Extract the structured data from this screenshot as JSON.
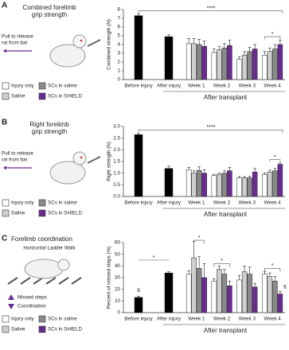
{
  "chart_data": [
    {
      "type": "bar",
      "panel_label": "A",
      "title_lines": [
        "Combined forelimb",
        "grip strength"
      ],
      "note_lines": [
        "Pull to release",
        "rat from bar"
      ],
      "y_label": "Combined strength (N)",
      "group_label": "After transplant",
      "categories": [
        "Before injury",
        "After injury",
        "Week 1",
        "Week 2",
        "Week 3",
        "Week 4"
      ],
      "baseline": {
        "color": "#000000",
        "values": [
          7.3,
          4.9,
          null,
          null,
          null,
          null
        ],
        "errors": [
          0.2,
          0.2,
          null,
          null,
          null,
          null
        ]
      },
      "series": [
        {
          "name": "Injury only",
          "color": "#ffffff",
          "values": [
            null,
            null,
            4.1,
            3.1,
            2.3,
            2.8
          ],
          "errors": [
            null,
            null,
            0.6,
            0.4,
            0.3,
            0.4
          ]
        },
        {
          "name": "Saline",
          "color": "#cfcfcf",
          "values": [
            null,
            null,
            4.1,
            3.4,
            2.8,
            3.2
          ],
          "errors": [
            null,
            null,
            0.6,
            0.4,
            0.4,
            0.4
          ]
        },
        {
          "name": "SCs in saline",
          "color": "#8a8a8a",
          "values": [
            null,
            null,
            4.0,
            3.6,
            3.2,
            3.5
          ],
          "errors": [
            null,
            null,
            0.6,
            0.5,
            0.5,
            0.5
          ]
        },
        {
          "name": "SCs in SHIELD",
          "color": "#6a2c91",
          "values": [
            null,
            null,
            3.8,
            3.9,
            3.5,
            4.0
          ],
          "errors": [
            null,
            null,
            0.6,
            0.6,
            0.5,
            0.5
          ]
        }
      ],
      "ylim": [
        0,
        8
      ],
      "yticks": [
        0,
        1,
        2,
        3,
        4,
        5,
        6,
        7,
        8
      ],
      "annotations": [
        "****",
        "*"
      ]
    },
    {
      "type": "bar",
      "panel_label": "B",
      "title_lines": [
        "Right forelimb",
        "grip strength"
      ],
      "note_lines": [
        "Pull to release",
        "rat from bar"
      ],
      "y_label": "Right strength (N)",
      "group_label": "After transplant",
      "categories": [
        "Before injury",
        "After injury",
        "Week 1",
        "Week 2",
        "Week 3",
        "Week 4"
      ],
      "baseline": {
        "color": "#000000",
        "values": [
          2.65,
          1.2,
          null,
          null,
          null,
          null
        ],
        "errors": [
          0.05,
          0.1,
          null,
          null,
          null,
          null
        ]
      },
      "series": [
        {
          "name": "Injury only",
          "color": "#ffffff",
          "values": [
            null,
            null,
            1.15,
            0.9,
            0.8,
            0.95
          ],
          "errors": [
            null,
            null,
            0.1,
            0.05,
            0.05,
            0.06
          ]
        },
        {
          "name": "Saline",
          "color": "#cfcfcf",
          "values": [
            null,
            null,
            1.0,
            0.95,
            0.8,
            1.05
          ],
          "errors": [
            null,
            null,
            0.1,
            0.06,
            0.05,
            0.08
          ]
        },
        {
          "name": "SCs in saline",
          "color": "#8a8a8a",
          "values": [
            null,
            null,
            1.12,
            1.0,
            0.8,
            1.1
          ],
          "errors": [
            null,
            null,
            0.15,
            0.1,
            0.06,
            0.1
          ]
        },
        {
          "name": "SCs in SHIELD",
          "color": "#6a2c91",
          "values": [
            null,
            null,
            1.0,
            1.1,
            1.05,
            1.38
          ],
          "errors": [
            null,
            null,
            0.15,
            0.15,
            0.15,
            0.06
          ]
        }
      ],
      "ylim": [
        0,
        3
      ],
      "yticks": [
        {
          "value": 0,
          "label": "0.0"
        },
        {
          "value": 0.5,
          "label": "0.5"
        },
        {
          "value": 1,
          "label": "1.0"
        },
        {
          "value": 1.5,
          "label": "1.5"
        },
        {
          "value": 2,
          "label": "2.0"
        },
        {
          "value": 2.5,
          "label": "2.5"
        },
        {
          "value": 3,
          "label": "3.0"
        }
      ],
      "annotations": [
        "****",
        "*"
      ]
    },
    {
      "type": "bar",
      "panel_label": "C",
      "title_lines": [
        "Forelimb coordination",
        "Horizontal Ladder Walk"
      ],
      "note_lines": [
        "Missed steps",
        "Coordination"
      ],
      "y_label": "Percent of missed steps (%)",
      "group_label": "After transplant",
      "categories": [
        "Before injury",
        "After injury",
        "Week 1",
        "Week 2",
        "Week 3",
        "Week 4"
      ],
      "baseline": {
        "color": "#000000",
        "values": [
          13,
          34,
          null,
          null,
          null,
          null
        ],
        "errors": [
          1,
          1,
          null,
          null,
          null,
          null
        ]
      },
      "series": [
        {
          "name": "Injury only",
          "color": "#ffffff",
          "values": [
            null,
            null,
            33,
            27,
            28,
            33
          ],
          "errors": [
            null,
            null,
            3,
            2,
            4,
            2
          ]
        },
        {
          "name": "Saline",
          "color": "#cfcfcf",
          "values": [
            null,
            null,
            47,
            37,
            35,
            31
          ],
          "errors": [
            null,
            null,
            14,
            3,
            5,
            3
          ]
        },
        {
          "name": "SCs in saline",
          "color": "#8a8a8a",
          "values": [
            null,
            null,
            38,
            33,
            33,
            27
          ],
          "errors": [
            null,
            null,
            10,
            4,
            6,
            4
          ]
        },
        {
          "name": "SCs in SHIELD",
          "color": "#6a2c91",
          "values": [
            null,
            null,
            30,
            23,
            22,
            16
          ],
          "errors": [
            null,
            null,
            12,
            4,
            3,
            2
          ]
        }
      ],
      "ylim": [
        0,
        60
      ],
      "yticks": [
        0,
        10,
        20,
        30,
        40,
        50,
        60
      ],
      "annotations": [
        "*",
        "*",
        "*",
        "*",
        "$",
        "$"
      ]
    }
  ]
}
